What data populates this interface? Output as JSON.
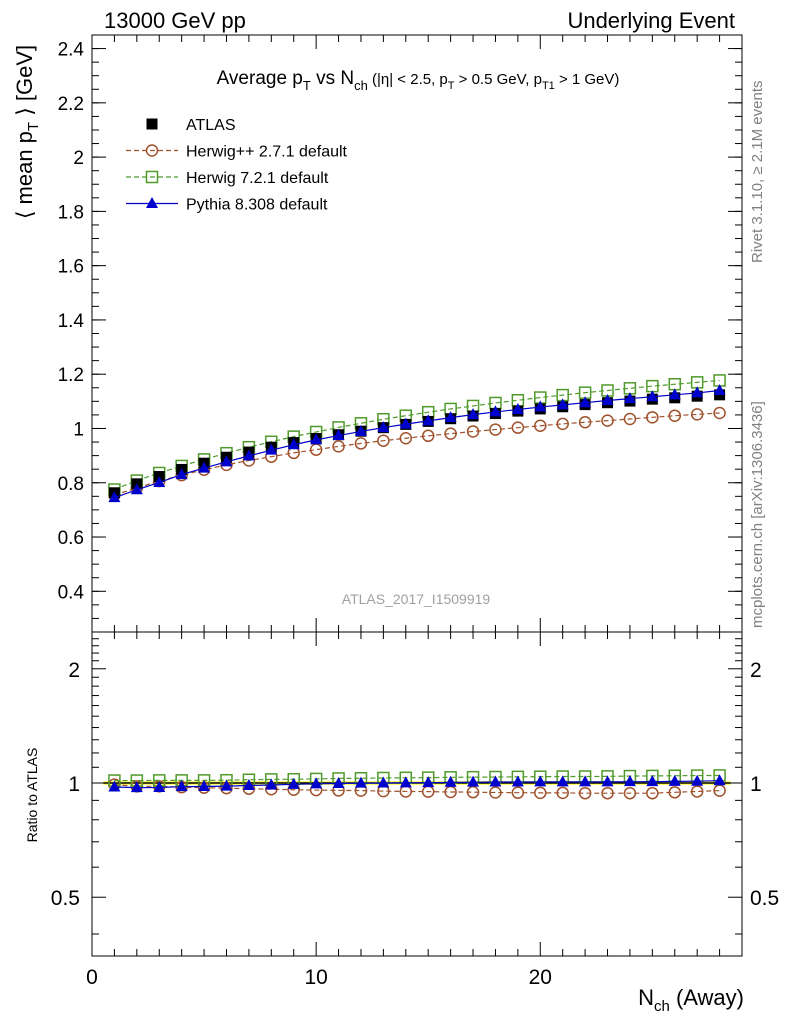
{
  "header": {
    "left": "13000 GeV pp",
    "right": "Underlying Event"
  },
  "side_labels": {
    "rivet": "Rivet 3.1.10, ≥ 2.1M events",
    "mcplots": "mcplots.cern.ch [arXiv:1306.3436]"
  },
  "chart_data": [
    {
      "type": "scatter",
      "title": "Average p_T vs N_ch (|η| < 2.5, p_T > 0.5 GeV, p_T1 > 1 GeV)",
      "watermark": "ATLAS_2017_I1509919",
      "ylabel": "⟨ mean p_T ⟩ [GeV]",
      "xlabel": "N_ch (Away)",
      "xlim": [
        0,
        29
      ],
      "ylim": [
        0.25,
        2.45
      ],
      "grid": false,
      "legend_position": "top-left",
      "x_ticks": [
        0,
        10,
        20
      ],
      "y_ticks": [
        0.4,
        0.6,
        0.8,
        1.0,
        1.2,
        1.4,
        1.6,
        1.8,
        2.0,
        2.2,
        2.4
      ],
      "y_tick_labels": [
        "0.4",
        "0.6",
        "0.8",
        "1",
        "1.2",
        "1.4",
        "1.6",
        "1.8",
        "2",
        "2.2",
        "2.4"
      ],
      "x": [
        1,
        2,
        3,
        4,
        5,
        6,
        7,
        8,
        9,
        10,
        11,
        12,
        13,
        14,
        15,
        16,
        17,
        18,
        19,
        20,
        21,
        22,
        23,
        24,
        25,
        26,
        27,
        28
      ],
      "series": [
        {
          "name": "ATLAS",
          "color": "#000000",
          "marker": "filled-square",
          "line": "none",
          "values": [
            0.763,
            0.796,
            0.823,
            0.849,
            0.872,
            0.894,
            0.913,
            0.931,
            0.948,
            0.963,
            0.977,
            0.99,
            1.003,
            1.015,
            1.026,
            1.036,
            1.046,
            1.055,
            1.064,
            1.072,
            1.08,
            1.088,
            1.095,
            1.101,
            1.108,
            1.113,
            1.119,
            1.124
          ]
        },
        {
          "name": "Herwig++ 2.7.1 default",
          "color": "#a0522d",
          "marker": "open-circle",
          "line": "dashed",
          "values": [
            0.755,
            0.781,
            0.806,
            0.828,
            0.848,
            0.866,
            0.882,
            0.896,
            0.91,
            0.922,
            0.934,
            0.945,
            0.955,
            0.964,
            0.973,
            0.981,
            0.989,
            0.996,
            1.003,
            1.01,
            1.017,
            1.023,
            1.029,
            1.035,
            1.041,
            1.047,
            1.052,
            1.057
          ]
        },
        {
          "name": "Herwig 7.2.1 default",
          "color": "#4f9a2a",
          "marker": "open-square",
          "line": "dashed",
          "values": [
            0.775,
            0.808,
            0.836,
            0.862,
            0.886,
            0.909,
            0.931,
            0.951,
            0.97,
            0.987,
            1.004,
            1.019,
            1.034,
            1.047,
            1.06,
            1.072,
            1.083,
            1.094,
            1.104,
            1.114,
            1.123,
            1.132,
            1.14,
            1.148,
            1.156,
            1.163,
            1.17,
            1.177
          ]
        },
        {
          "name": "Pythia 8.308 default",
          "color": "#0000cc",
          "marker": "filled-triangle",
          "line": "solid",
          "values": [
            0.745,
            0.774,
            0.801,
            0.83,
            0.854,
            0.877,
            0.899,
            0.92,
            0.94,
            0.958,
            0.974,
            0.989,
            1.003,
            1.016,
            1.028,
            1.04,
            1.051,
            1.061,
            1.07,
            1.079,
            1.087,
            1.095,
            1.103,
            1.11,
            1.117,
            1.124,
            1.131,
            1.14
          ]
        }
      ]
    },
    {
      "type": "scatter",
      "ylabel": "Ratio to ATLAS",
      "xlabel": "N_ch (Away)",
      "xlim": [
        0,
        29
      ],
      "ylim": [
        0.35,
        2.5
      ],
      "log_y": true,
      "y_ticks": [
        0.5,
        1,
        2
      ],
      "y_tick_labels": [
        "0.5",
        "1",
        "2"
      ],
      "x_ticks": [
        0,
        10,
        20
      ],
      "x_tick_labels": [
        "0",
        "10",
        "20"
      ],
      "x": [
        1,
        2,
        3,
        4,
        5,
        6,
        7,
        8,
        9,
        10,
        11,
        12,
        13,
        14,
        15,
        16,
        17,
        18,
        19,
        20,
        21,
        22,
        23,
        24,
        25,
        26,
        27,
        28
      ],
      "reference_band": {
        "name": "ATLAS",
        "color": "#ffff66",
        "line_color": "#000000"
      },
      "series": [
        {
          "name": "Herwig++ 2.7.1 default",
          "color": "#a0522d",
          "marker": "open-circle",
          "line": "dashed",
          "values": [
            0.99,
            0.98,
            0.98,
            0.975,
            0.972,
            0.969,
            0.966,
            0.963,
            0.96,
            0.958,
            0.956,
            0.955,
            0.952,
            0.95,
            0.949,
            0.947,
            0.946,
            0.944,
            0.943,
            0.942,
            0.942,
            0.94,
            0.94,
            0.94,
            0.94,
            0.945,
            0.95,
            0.955
          ]
        },
        {
          "name": "Herwig 7.2.1 default",
          "color": "#4f9a2a",
          "marker": "open-square",
          "line": "dashed",
          "values": [
            1.015,
            1.015,
            1.016,
            1.016,
            1.016,
            1.017,
            1.02,
            1.022,
            1.023,
            1.025,
            1.028,
            1.029,
            1.031,
            1.032,
            1.033,
            1.035,
            1.036,
            1.037,
            1.038,
            1.039,
            1.04,
            1.04,
            1.041,
            1.043,
            1.044,
            1.045,
            1.046,
            1.047
          ]
        },
        {
          "name": "Pythia 8.308 default",
          "color": "#0000cc",
          "marker": "filled-triangle",
          "line": "solid",
          "values": [
            0.976,
            0.972,
            0.973,
            0.978,
            0.979,
            0.981,
            0.985,
            0.988,
            0.992,
            0.995,
            0.997,
            0.999,
            1.0,
            1.001,
            1.002,
            1.004,
            1.005,
            1.006,
            1.006,
            1.007,
            1.007,
            1.007,
            1.007,
            1.008,
            1.008,
            1.01,
            1.011,
            1.014
          ]
        }
      ]
    }
  ]
}
